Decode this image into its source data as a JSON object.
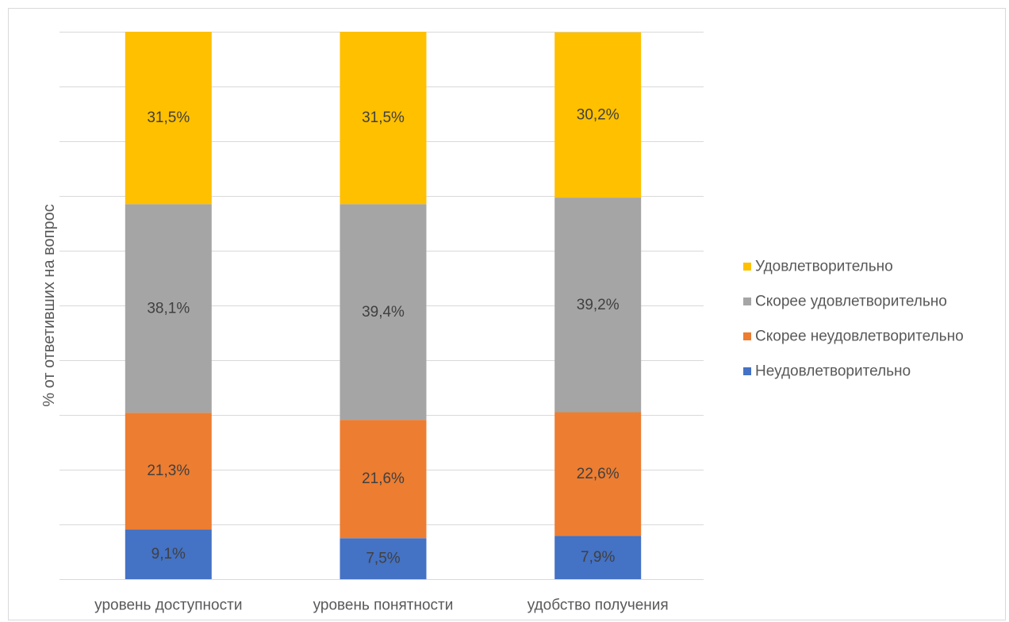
{
  "chart_data": {
    "type": "bar",
    "stacked": true,
    "categories": [
      "уровень доступности",
      "уровень понятности",
      "удобство получения"
    ],
    "series": [
      {
        "name": "Неудовлетворительно",
        "values": [
          9.1,
          7.5,
          7.9
        ],
        "labels": [
          "9,1%",
          "7,5%",
          "7,9%"
        ],
        "color": "#4472C4"
      },
      {
        "name": "Скорее неудовлетворительно",
        "values": [
          21.3,
          21.6,
          22.6
        ],
        "labels": [
          "21,3%",
          "21,6%",
          "22,6%"
        ],
        "color": "#ED7D31"
      },
      {
        "name": "Скорее удовлетворительно",
        "values": [
          38.1,
          39.4,
          39.2
        ],
        "labels": [
          "38,1%",
          "39,4%",
          "39,2%"
        ],
        "color": "#A5A5A5"
      },
      {
        "name": "Удовлетворительно",
        "values": [
          31.5,
          31.5,
          30.2
        ],
        "labels": [
          "31,5%",
          "31,5%",
          "30,2%"
        ],
        "color": "#FFC000"
      }
    ],
    "title": "",
    "xlabel": "",
    "ylabel": "% от ответивших на вопрос",
    "ylim": [
      0,
      100
    ],
    "ytick_step": 10,
    "grid": true,
    "legend": "right"
  }
}
